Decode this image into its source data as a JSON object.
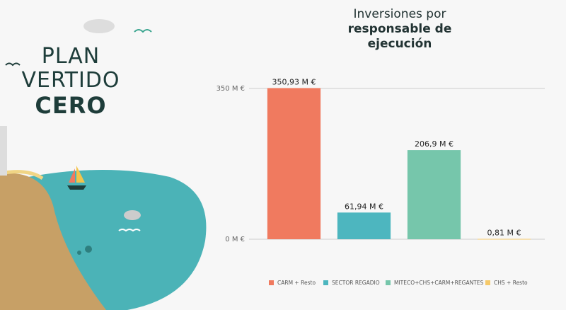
{
  "logo": {
    "lines": [
      "PLAN",
      "VERTIDO",
      "CERO"
    ]
  },
  "chart_data": {
    "type": "bar",
    "title": {
      "regular": "Inversiones por",
      "bold": "responsable de ejecución"
    },
    "categories": [
      "CARM + Resto",
      "SECTOR REGADIO",
      "MITECO+CHS+CARM+REGANTES",
      "CHS + Resto"
    ],
    "values": [
      350.93,
      61.94,
      206.9,
      0.81
    ],
    "value_labels": [
      "350,93 M €",
      "61,94 M €",
      "206,9 M €",
      "0,81 M €"
    ],
    "colors": [
      "#f07a5f",
      "#4db6bf",
      "#76c6ab",
      "#f5c96a"
    ],
    "ylim": [
      0,
      350
    ],
    "yticks": [
      {
        "value": 0,
        "label": "0 M €"
      },
      {
        "value": 350,
        "label": "350 M €"
      }
    ],
    "grid": true,
    "legend": "bottom"
  }
}
